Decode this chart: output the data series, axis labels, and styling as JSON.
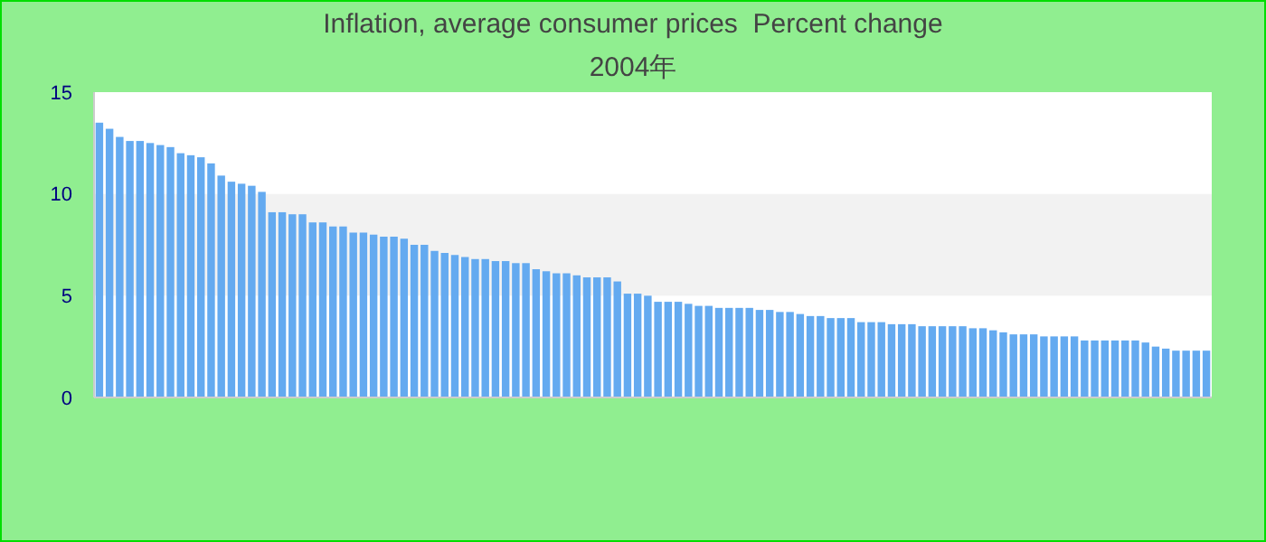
{
  "chart_data": {
    "type": "bar",
    "title": "Inflation, average consumer prices  Percent change",
    "subtitle": "2004年",
    "categories": [
      null,
      null,
      null,
      null,
      null,
      null,
      null,
      null,
      null,
      null,
      null,
      null,
      null,
      null,
      null,
      null,
      null,
      null,
      null,
      null,
      null,
      null,
      null,
      null,
      null,
      null,
      null,
      null,
      null,
      null,
      null,
      null,
      null,
      null,
      null,
      null,
      null,
      null,
      null,
      null,
      null,
      null,
      null,
      null,
      null,
      null,
      null,
      null,
      null,
      null,
      null,
      null,
      null,
      null,
      null,
      null,
      null,
      null,
      null,
      null,
      null,
      null,
      null,
      null,
      null,
      null,
      null,
      null,
      null,
      null,
      null,
      null,
      null,
      null,
      null,
      null,
      null,
      null,
      null,
      null,
      null,
      null,
      null,
      null,
      null,
      null,
      null,
      null,
      null,
      null,
      null,
      null,
      null,
      null,
      null,
      null,
      null,
      null,
      null,
      null,
      null,
      null,
      null,
      null,
      null,
      null,
      null,
      null,
      null,
      null
    ],
    "values": [
      13.5,
      13.2,
      12.8,
      12.6,
      12.6,
      12.5,
      12.4,
      12.3,
      12.0,
      11.9,
      11.8,
      11.5,
      10.9,
      10.6,
      10.5,
      10.4,
      10.1,
      9.1,
      9.1,
      9.0,
      9.0,
      8.6,
      8.6,
      8.4,
      8.4,
      8.1,
      8.1,
      8.0,
      7.9,
      7.9,
      7.8,
      7.5,
      7.5,
      7.2,
      7.1,
      7.0,
      6.9,
      6.8,
      6.8,
      6.7,
      6.7,
      6.6,
      6.6,
      6.3,
      6.2,
      6.1,
      6.1,
      6.0,
      5.9,
      5.9,
      5.9,
      5.7,
      5.1,
      5.1,
      5.0,
      4.7,
      4.7,
      4.7,
      4.6,
      4.5,
      4.5,
      4.4,
      4.4,
      4.4,
      4.4,
      4.3,
      4.3,
      4.2,
      4.2,
      4.1,
      4.0,
      4.0,
      3.9,
      3.9,
      3.9,
      3.7,
      3.7,
      3.7,
      3.6,
      3.6,
      3.6,
      3.5,
      3.5,
      3.5,
      3.5,
      3.5,
      3.4,
      3.4,
      3.3,
      3.2,
      3.1,
      3.1,
      3.1,
      3.0,
      3.0,
      3.0,
      3.0,
      2.8,
      2.8,
      2.8,
      2.8,
      2.8,
      2.8,
      2.7,
      2.5,
      2.4,
      2.3,
      2.3,
      2.3,
      2.3
    ],
    "color": "#64aaf0",
    "ylim": [
      0,
      15
    ],
    "yticks": [
      0,
      5,
      10,
      15
    ],
    "bands": [
      {
        "axis": "y",
        "from": 5,
        "to": 10,
        "color": "#f2f2f2"
      }
    ]
  }
}
